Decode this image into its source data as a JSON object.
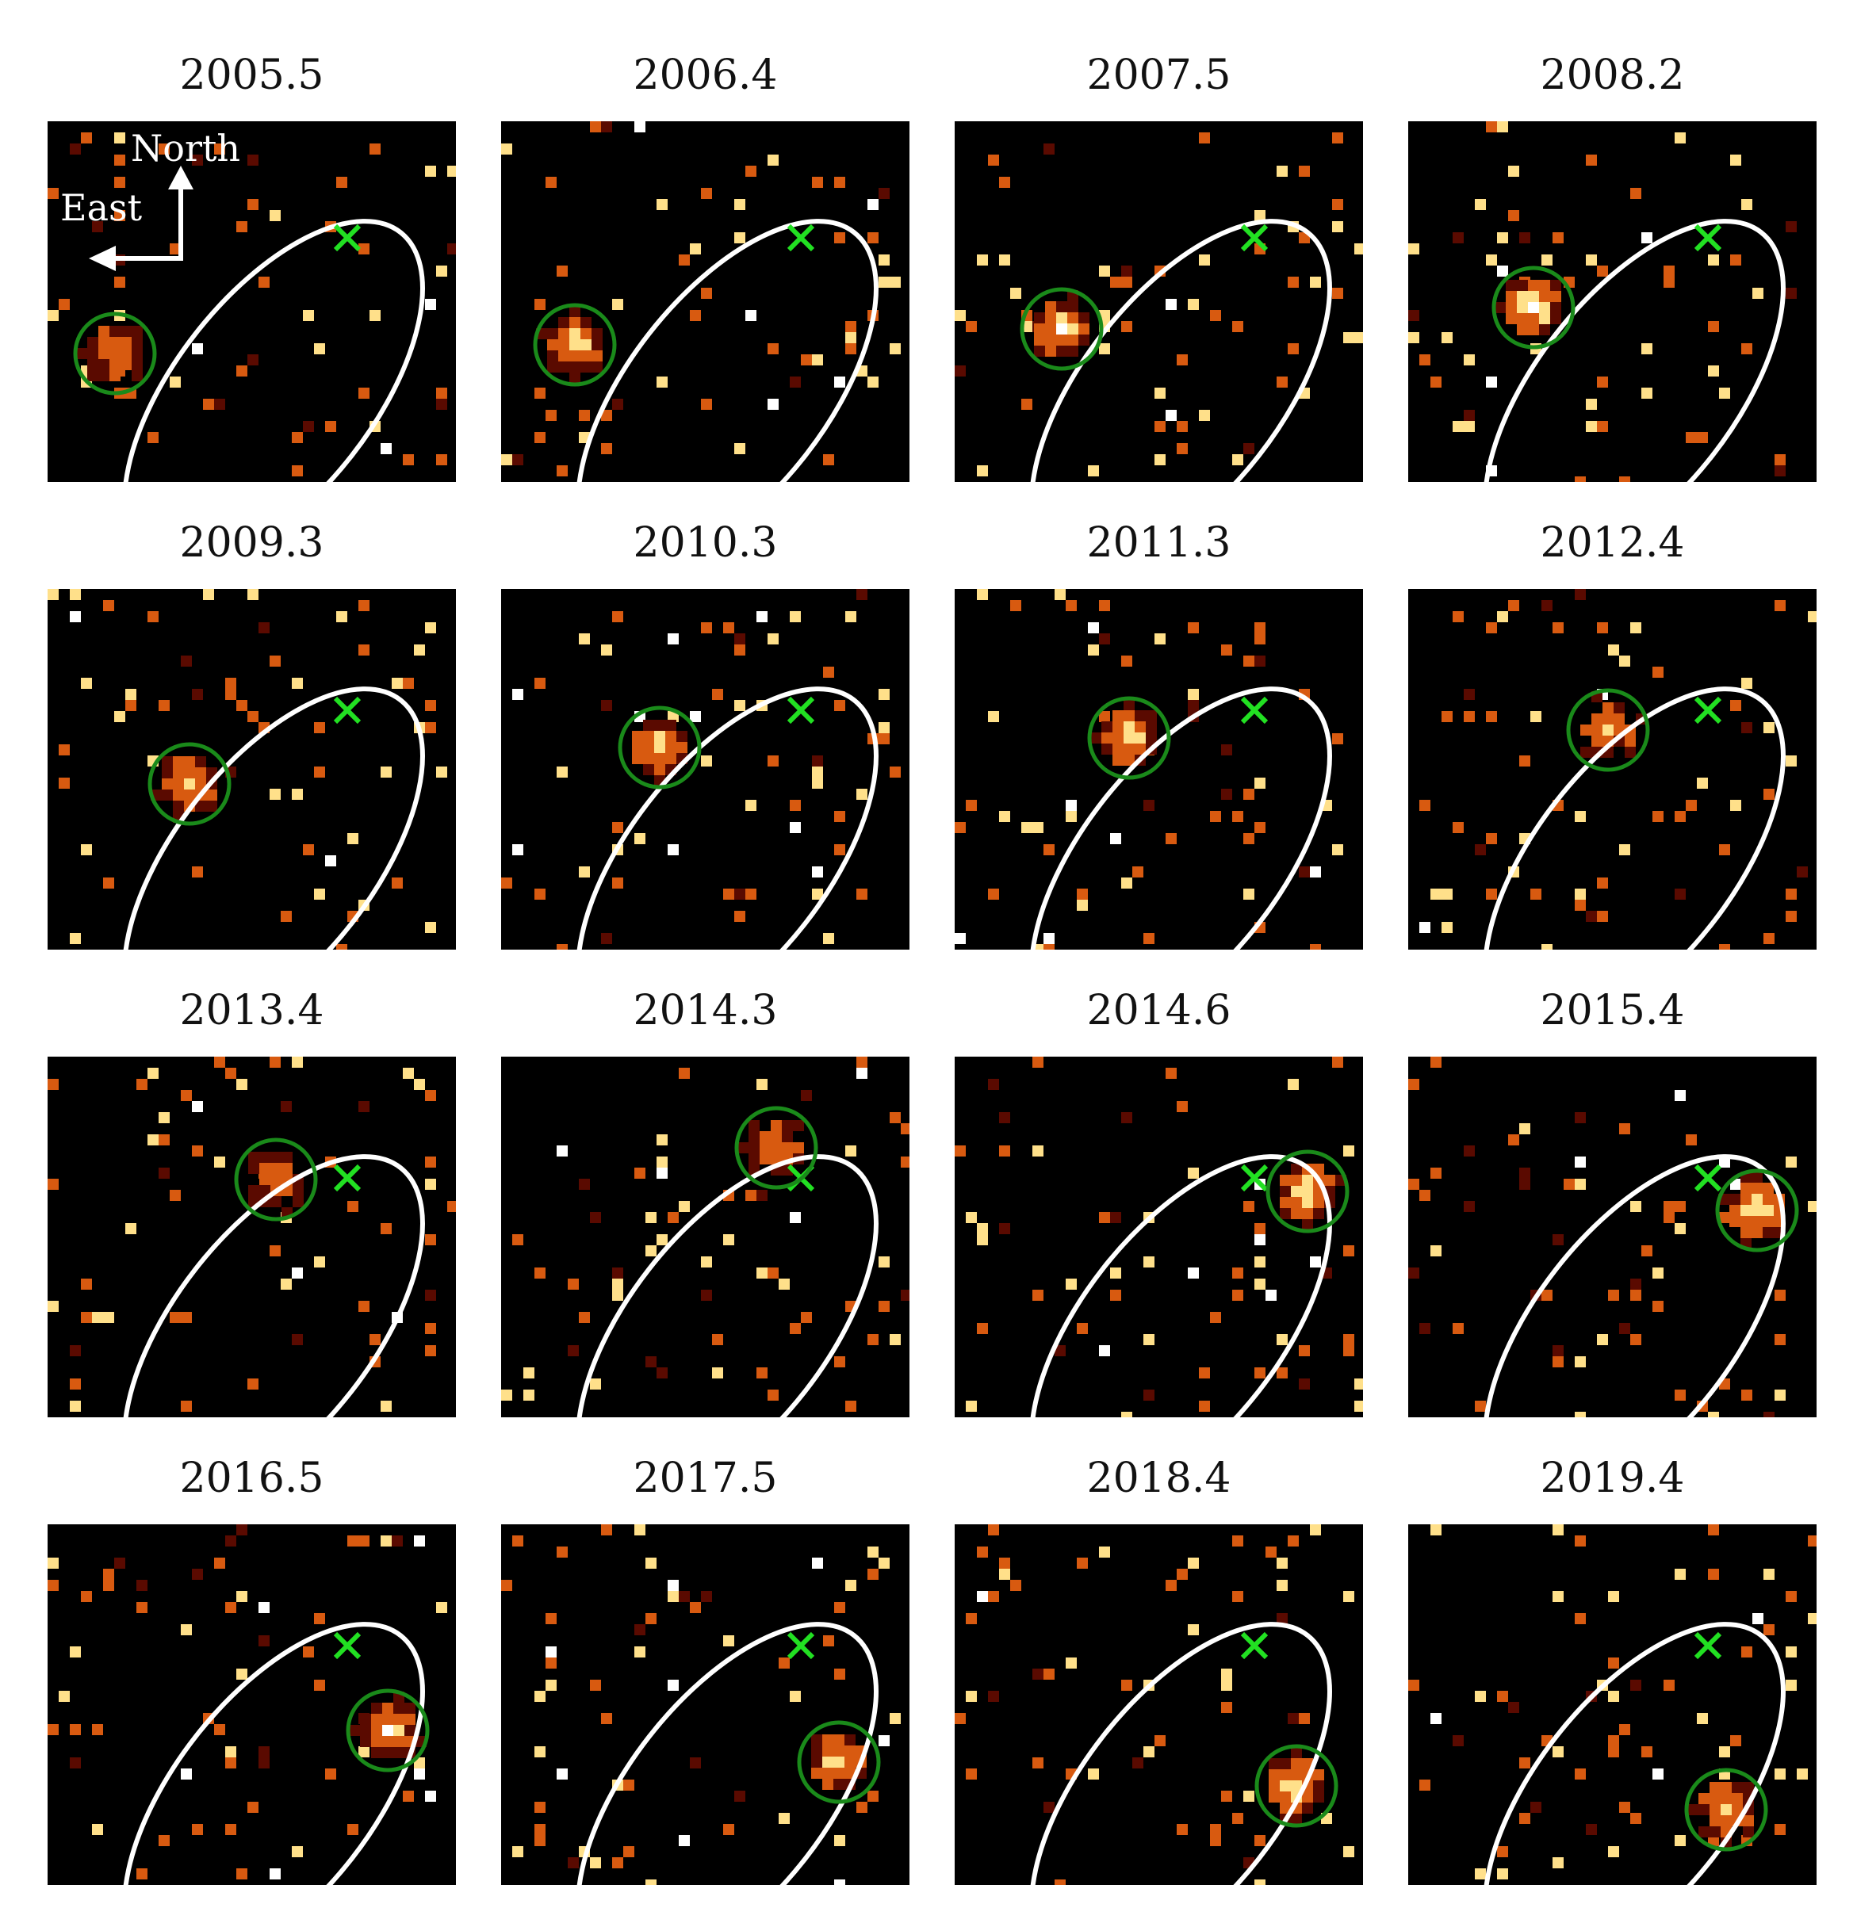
{
  "panels": [
    {
      "epoch": "2005.5",
      "fill": 0.55
    },
    {
      "epoch": "2006.4",
      "fill": 0.85
    },
    {
      "epoch": "2007.5",
      "fill": 0.9
    },
    {
      "epoch": "2008.2",
      "fill": 1.0
    },
    {
      "epoch": "2009.3",
      "fill": 0.75
    },
    {
      "epoch": "2010.3",
      "fill": 0.8
    },
    {
      "epoch": "2011.3",
      "fill": 0.8
    },
    {
      "epoch": "2012.4",
      "fill": 0.6
    },
    {
      "epoch": "2013.4",
      "fill": 0.65
    },
    {
      "epoch": "2014.3",
      "fill": 0.7
    },
    {
      "epoch": "2014.6",
      "fill": 0.85
    },
    {
      "epoch": "2015.4",
      "fill": 0.95
    },
    {
      "epoch": "2016.5",
      "fill": 0.9
    },
    {
      "epoch": "2017.5",
      "fill": 0.85
    },
    {
      "epoch": "2018.4",
      "fill": 0.95
    },
    {
      "epoch": "2019.4",
      "fill": 0.7
    }
  ],
  "compass": {
    "north_label": "North",
    "east_label": "East"
  },
  "colors": {
    "background": "#000000",
    "orbit": "#ffffff",
    "marker_circle": "#1a8a1a",
    "reference_cross": "#22e022",
    "hot_low": "#5a0a00",
    "hot_mid": "#d85a10",
    "hot_high": "#ffe08a"
  },
  "icons": {
    "reference": "cross-icon",
    "source": "circle-marker-icon",
    "compass": "compass-arrows-icon"
  }
}
